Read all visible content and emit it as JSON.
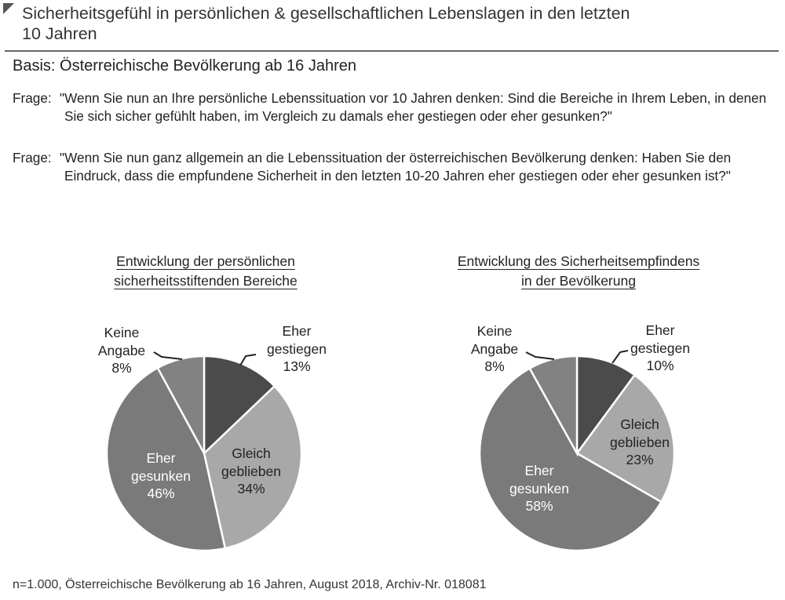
{
  "header": {
    "title": "Sicherheitsgefühl in persönlichen & gesellschaftlichen Lebenslagen in den letzten 10 Jahren",
    "basis": "Basis:  Österreichische Bevölkerung ab 16 Jahren",
    "questions": [
      {
        "label": "Frage:",
        "text": "\"Wenn Sie nun an Ihre persönliche Lebenssituation vor 10 Jahren denken: Sind die Bereiche in Ihrem Leben, in denen Sie sich sicher gefühlt haben, im Vergleich zu damals eher gestiegen oder eher gesunken?\""
      },
      {
        "label": "Frage:",
        "text": "\"Wenn Sie nun ganz allgemein an die Lebenssituation der österreichischen Bevölkerung denken: Haben Sie den Eindruck, dass die empfundene Sicherheit in den letzten 10-20 Jahren eher gestiegen oder eher gesunken ist?\""
      }
    ]
  },
  "footer": "n=1.000, Österreichische Bevölkerung ab 16 Jahren, August 2018, Archiv-Nr. 018081",
  "chart_data": [
    {
      "type": "pie",
      "title_lines": [
        "Entwicklung der persönlichen",
        "sicherheitsstiftenden Bereiche"
      ],
      "slices": [
        {
          "label_lines": [
            "Eher",
            "gestiegen"
          ],
          "value": 13,
          "value_label": "13%",
          "color": "#4b4b4b"
        },
        {
          "label_lines": [
            "Gleich",
            "geblieben"
          ],
          "value": 34,
          "value_label": "34%",
          "color": "#a8a8a8"
        },
        {
          "label_lines": [
            "Eher",
            "gesunken"
          ],
          "value": 46,
          "value_label": "46%",
          "color": "#7a7a7a"
        },
        {
          "label_lines": [
            "Keine",
            "Angabe"
          ],
          "value": 8,
          "value_label": "8%",
          "color": "#828282"
        }
      ]
    },
    {
      "type": "pie",
      "title_lines": [
        "Entwicklung des Sicherheitsempfindens",
        "in der Bevölkerung"
      ],
      "slices": [
        {
          "label_lines": [
            "Eher",
            "gestiegen"
          ],
          "value": 10,
          "value_label": "10%",
          "color": "#4b4b4b"
        },
        {
          "label_lines": [
            "Gleich",
            "geblieben"
          ],
          "value": 23,
          "value_label": "23%",
          "color": "#a8a8a8"
        },
        {
          "label_lines": [
            "Eher",
            "gesunken"
          ],
          "value": 58,
          "value_label": "58%",
          "color": "#7a7a7a"
        },
        {
          "label_lines": [
            "Keine",
            "Angabe"
          ],
          "value": 8,
          "value_label": "8%",
          "color": "#828282"
        }
      ]
    }
  ]
}
